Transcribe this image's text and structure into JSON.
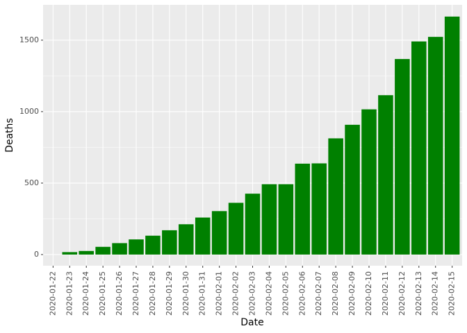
{
  "chart_data": {
    "type": "bar",
    "x_label": "Date",
    "y_label": "Deaths",
    "categories": [
      "2020-01-22",
      "2020-01-23",
      "2020-01-24",
      "2020-01-25",
      "2020-01-26",
      "2020-01-27",
      "2020-01-28",
      "2020-01-29",
      "2020-01-30",
      "2020-01-31",
      "2020-02-01",
      "2020-02-02",
      "2020-02-03",
      "2020-02-04",
      "2020-02-05",
      "2020-02-06",
      "2020-02-07",
      "2020-02-08",
      "2020-02-09",
      "2020-02-10",
      "2020-02-11",
      "2020-02-12",
      "2020-02-13",
      "2020-02-14",
      "2020-02-15"
    ],
    "values": [
      0,
      17,
      25,
      54,
      80,
      106,
      132,
      170,
      212,
      259,
      304,
      362,
      426,
      492,
      492,
      636,
      638,
      813,
      908,
      1016,
      1115,
      1368,
      1491,
      1523,
      1665
    ],
    "color": "#008000",
    "ylim": [
      -78,
      1747
    ],
    "yticks": [
      0,
      500,
      1000,
      1500
    ],
    "grid": true
  }
}
